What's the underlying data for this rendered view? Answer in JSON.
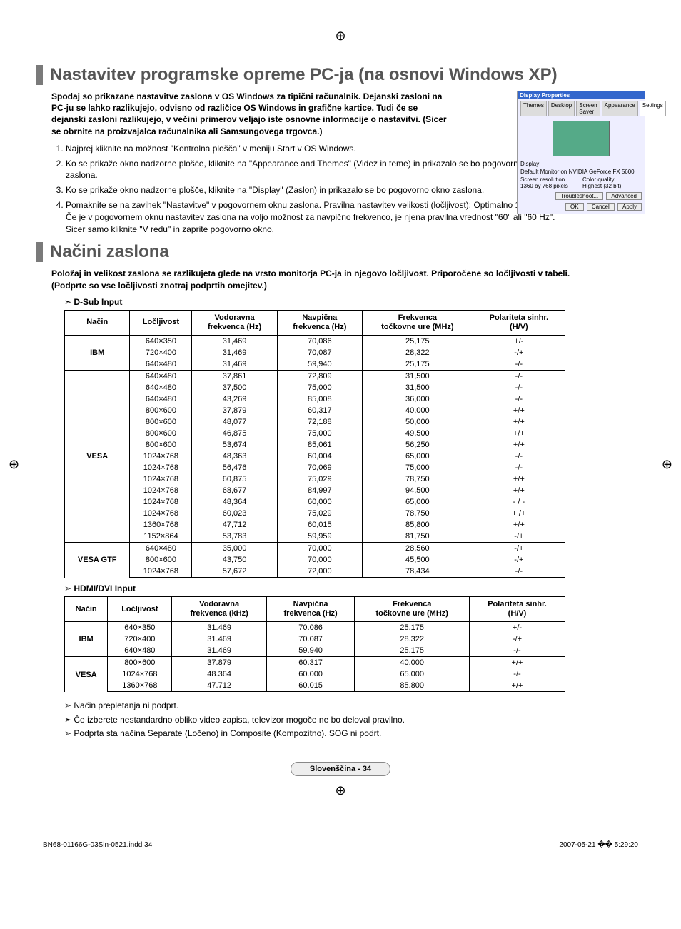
{
  "page": {
    "footer_file": "BN68-01166G-03Sln-0521.indd   34",
    "footer_date": "2007-05-21   �� 5:29:20",
    "footer_pill": "Slovenščina - 34"
  },
  "section1": {
    "title": "Nastavitev programske opreme PC-ja (na osnovi Windows XP)",
    "intro": "Spodaj so prikazane nastavitve zaslona v OS Windows za tipični računalnik. Dejanski zasloni na PC-ju se lahko razlikujejo, odvisno od različice OS Windows in grafične kartice. Tudi če se dejanski zasloni razlikujejo, v večini primerov veljajo iste osnovne informacije o nastavitvi. (Sicer se obrnite na proizvajalca računalnika ali Samsungovega trgovca.)",
    "steps": [
      "Najprej kliknite na možnost \"Kontrolna plošča\" v meniju Start v OS Windows.",
      "Ko se prikaže okno nadzorne plošče, kliknite na \"Appearance and Themes\" (Videz in teme) in prikazalo se bo pogovorno okno zaslona.",
      "Ko se prikaže okno nadzorne plošče, kliknite na \"Display\" (Zaslon) in prikazalo se bo pogovorno okno zaslona.",
      "Pomaknite se na zavihek \"Nastavitve\" v pogovornem oknu zaslona. Pravilna nastavitev velikosti (ločljivost): Optimalno 1360 X 768. Če je v pogovornem oknu nastavitev zaslona na voljo možnost za navpično frekvenco, je njena pravilna vrednost \"60\" ali \"60 Hz\". Sicer samo kliknite \"V redu\" in zaprite pogovorno okno."
    ],
    "dialog": {
      "title": "Display Properties",
      "tabs": [
        "Themes",
        "Desktop",
        "Screen Saver",
        "Appearance",
        "Settings"
      ],
      "display_label": "Display:",
      "display_value": "Default Monitor on NVIDIA GeForce FX 5600",
      "res_label": "Screen resolution",
      "res_value": "1360 by 768 pixels",
      "color_label": "Color quality",
      "color_value": "Highest (32 bit)",
      "btn_trouble": "Troubleshoot...",
      "btn_adv": "Advanced",
      "btn_ok": "OK",
      "btn_cancel": "Cancel",
      "btn_apply": "Apply"
    }
  },
  "section2": {
    "title": "Načini zaslona",
    "intro": "Položaj in velikost zaslona se razlikujeta glede na vrsto monitorja PC-ja in njegovo ločljivost. Priporočene so ločljivosti v tabeli. (Podprte so vse ločljivosti znotraj podprtih omejitev.)",
    "dsub_label": "D-Sub Input",
    "hdmi_label": "HDMI/DVI Input",
    "headers": {
      "mode": "Način",
      "res": "Ločljivost",
      "hfreq": "Vodoravna\nfrekvenca (Hz)",
      "hfreq_k": "Vodoravna\nfrekvenca (kHz)",
      "vfreq": "Navpična\nfrekvenca (Hz)",
      "pclk": "Frekvenca\ntočkovne ure (MHz)",
      "pol": "Polariteta sinhr.\n(H/V)"
    },
    "dsub_groups": [
      {
        "mode": "IBM",
        "rows": [
          [
            "640×350",
            "31,469",
            "70,086",
            "25,175",
            "+/-"
          ],
          [
            "720×400",
            "31,469",
            "70,087",
            "28,322",
            "-/+"
          ],
          [
            "640×480",
            "31,469",
            "59,940",
            "25,175",
            "-/-"
          ]
        ]
      },
      {
        "mode": "VESA",
        "rows": [
          [
            "640×480",
            "37,861",
            "72,809",
            "31,500",
            "-/-"
          ],
          [
            "640×480",
            "37,500",
            "75,000",
            "31,500",
            "-/-"
          ],
          [
            "640×480",
            "43,269",
            "85,008",
            "36,000",
            "-/-"
          ],
          [
            "800×600",
            "37,879",
            "60,317",
            "40,000",
            "+/+"
          ],
          [
            "800×600",
            "48,077",
            "72,188",
            "50,000",
            "+/+"
          ],
          [
            "800×600",
            "46,875",
            "75,000",
            "49,500",
            "+/+"
          ],
          [
            "800×600",
            "53,674",
            "85,061",
            "56,250",
            "+/+"
          ],
          [
            "1024×768",
            "48,363",
            "60,004",
            "65,000",
            "-/-"
          ],
          [
            "1024×768",
            "56,476",
            "70,069",
            "75,000",
            "-/-"
          ],
          [
            "1024×768",
            "60,875",
            "75,029",
            "78,750",
            "+/+"
          ],
          [
            "1024×768",
            "68,677",
            "84,997",
            "94,500",
            "+/+"
          ],
          [
            "1024×768",
            "48,364",
            "60,000",
            "65,000",
            "- / -"
          ],
          [
            "1024×768",
            "60,023",
            "75,029",
            "78,750",
            "+ /+"
          ],
          [
            "1360×768",
            "47,712",
            "60,015",
            "85,800",
            "+/+"
          ],
          [
            "1152×864",
            "53,783",
            "59,959",
            "81,750",
            "-/+"
          ]
        ]
      },
      {
        "mode": "VESA GTF",
        "rows": [
          [
            "640×480",
            "35,000",
            "70,000",
            "28,560",
            "-/+"
          ],
          [
            "800×600",
            "43,750",
            "70,000",
            "45,500",
            "-/+"
          ],
          [
            "1024×768",
            "57,672",
            "72,000",
            "78,434",
            "-/-"
          ]
        ]
      }
    ],
    "hdmi_groups": [
      {
        "mode": "IBM",
        "rows": [
          [
            "640×350",
            "31.469",
            "70.086",
            "25.175",
            "+/-"
          ],
          [
            "720×400",
            "31.469",
            "70.087",
            "28.322",
            "-/+"
          ],
          [
            "640×480",
            "31.469",
            "59.940",
            "25.175",
            "-/-"
          ]
        ]
      },
      {
        "mode": "VESA",
        "rows": [
          [
            "800×600",
            "37.879",
            "60.317",
            "40.000",
            "+/+"
          ],
          [
            "1024×768",
            "48.364",
            "60.000",
            "65.000",
            "-/-"
          ],
          [
            "1360×768",
            "47.712",
            "60.015",
            "85.800",
            "+/+"
          ]
        ]
      }
    ],
    "notes": [
      "Način prepletanja ni podprt.",
      "Če izberete nestandardno obliko video zapisa, televizor mogoče ne bo deloval pravilno.",
      "Podprta sta načina Separate (Ločeno) in Composite (Kompozitno). SOG ni podrt."
    ]
  }
}
